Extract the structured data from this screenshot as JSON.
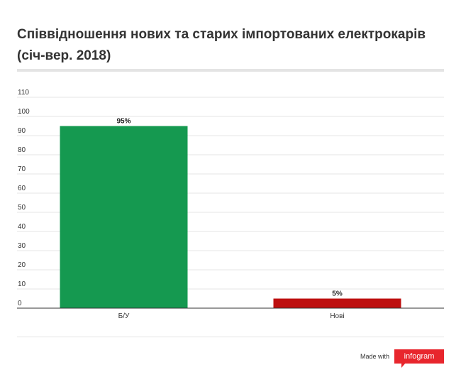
{
  "chart_data": {
    "type": "bar",
    "title": "Співвідношення нових та старих імпортованих електрокарів (січ-вер. 2018)",
    "categories": [
      "Б/У",
      "Нові"
    ],
    "values": [
      95,
      5
    ],
    "data_labels": [
      "95%",
      "5%"
    ],
    "colors": [
      "#159950",
      "#bd0f0f"
    ],
    "ylim": [
      0,
      110
    ],
    "yticks": [
      0,
      10,
      20,
      30,
      40,
      50,
      60,
      70,
      80,
      90,
      100,
      110
    ],
    "xlabel": "",
    "ylabel": "",
    "grid": true
  },
  "footer": {
    "made_with": "Made with",
    "brand": "infogram"
  }
}
